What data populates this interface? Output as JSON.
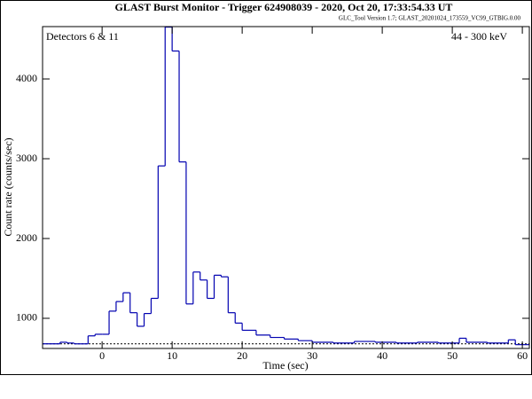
{
  "chart_data": {
    "type": "histogram",
    "title": "GLAST Burst Monitor  -  Trigger 624908039  -  2020, Oct 20, 17:33:54.33 UT",
    "subtitle": "GLC_Tool Version 1.7; GLAST_20201024_173559_VC99_GTBIG.0.00",
    "annotations": [
      "Detectors 6 & 11",
      "44 - 300 keV"
    ],
    "xlabel": "Time (sec)",
    "ylabel": "Count rate (counts/sec)",
    "color": "#0000b0",
    "bins": [
      -8.5,
      -6,
      -5,
      -4,
      -2,
      -1,
      0,
      1,
      2,
      3,
      4,
      5,
      6,
      7,
      8,
      9,
      10,
      11,
      12,
      13,
      14,
      15,
      16,
      17,
      18,
      19,
      20,
      22,
      24,
      26,
      28,
      30,
      33,
      36,
      39,
      42,
      45,
      48,
      51,
      52,
      55,
      58,
      59,
      61
    ],
    "values": [
      680,
      700,
      690,
      680,
      780,
      800,
      800,
      1090,
      1210,
      1320,
      1070,
      900,
      1060,
      1250,
      2910,
      4650,
      4350,
      2960,
      1180,
      1580,
      1480,
      1250,
      1540,
      1520,
      1070,
      940,
      850,
      790,
      760,
      740,
      720,
      700,
      690,
      710,
      700,
      690,
      700,
      690,
      750,
      700,
      690,
      730,
      670
    ],
    "background_level": 680,
    "xlim": [
      -8.5,
      61
    ],
    "ylim": [
      622,
      4656
    ],
    "xticks": [
      0,
      10,
      20,
      30,
      40,
      50,
      60
    ],
    "yticks": [
      1000,
      2000,
      3000,
      4000
    ]
  }
}
